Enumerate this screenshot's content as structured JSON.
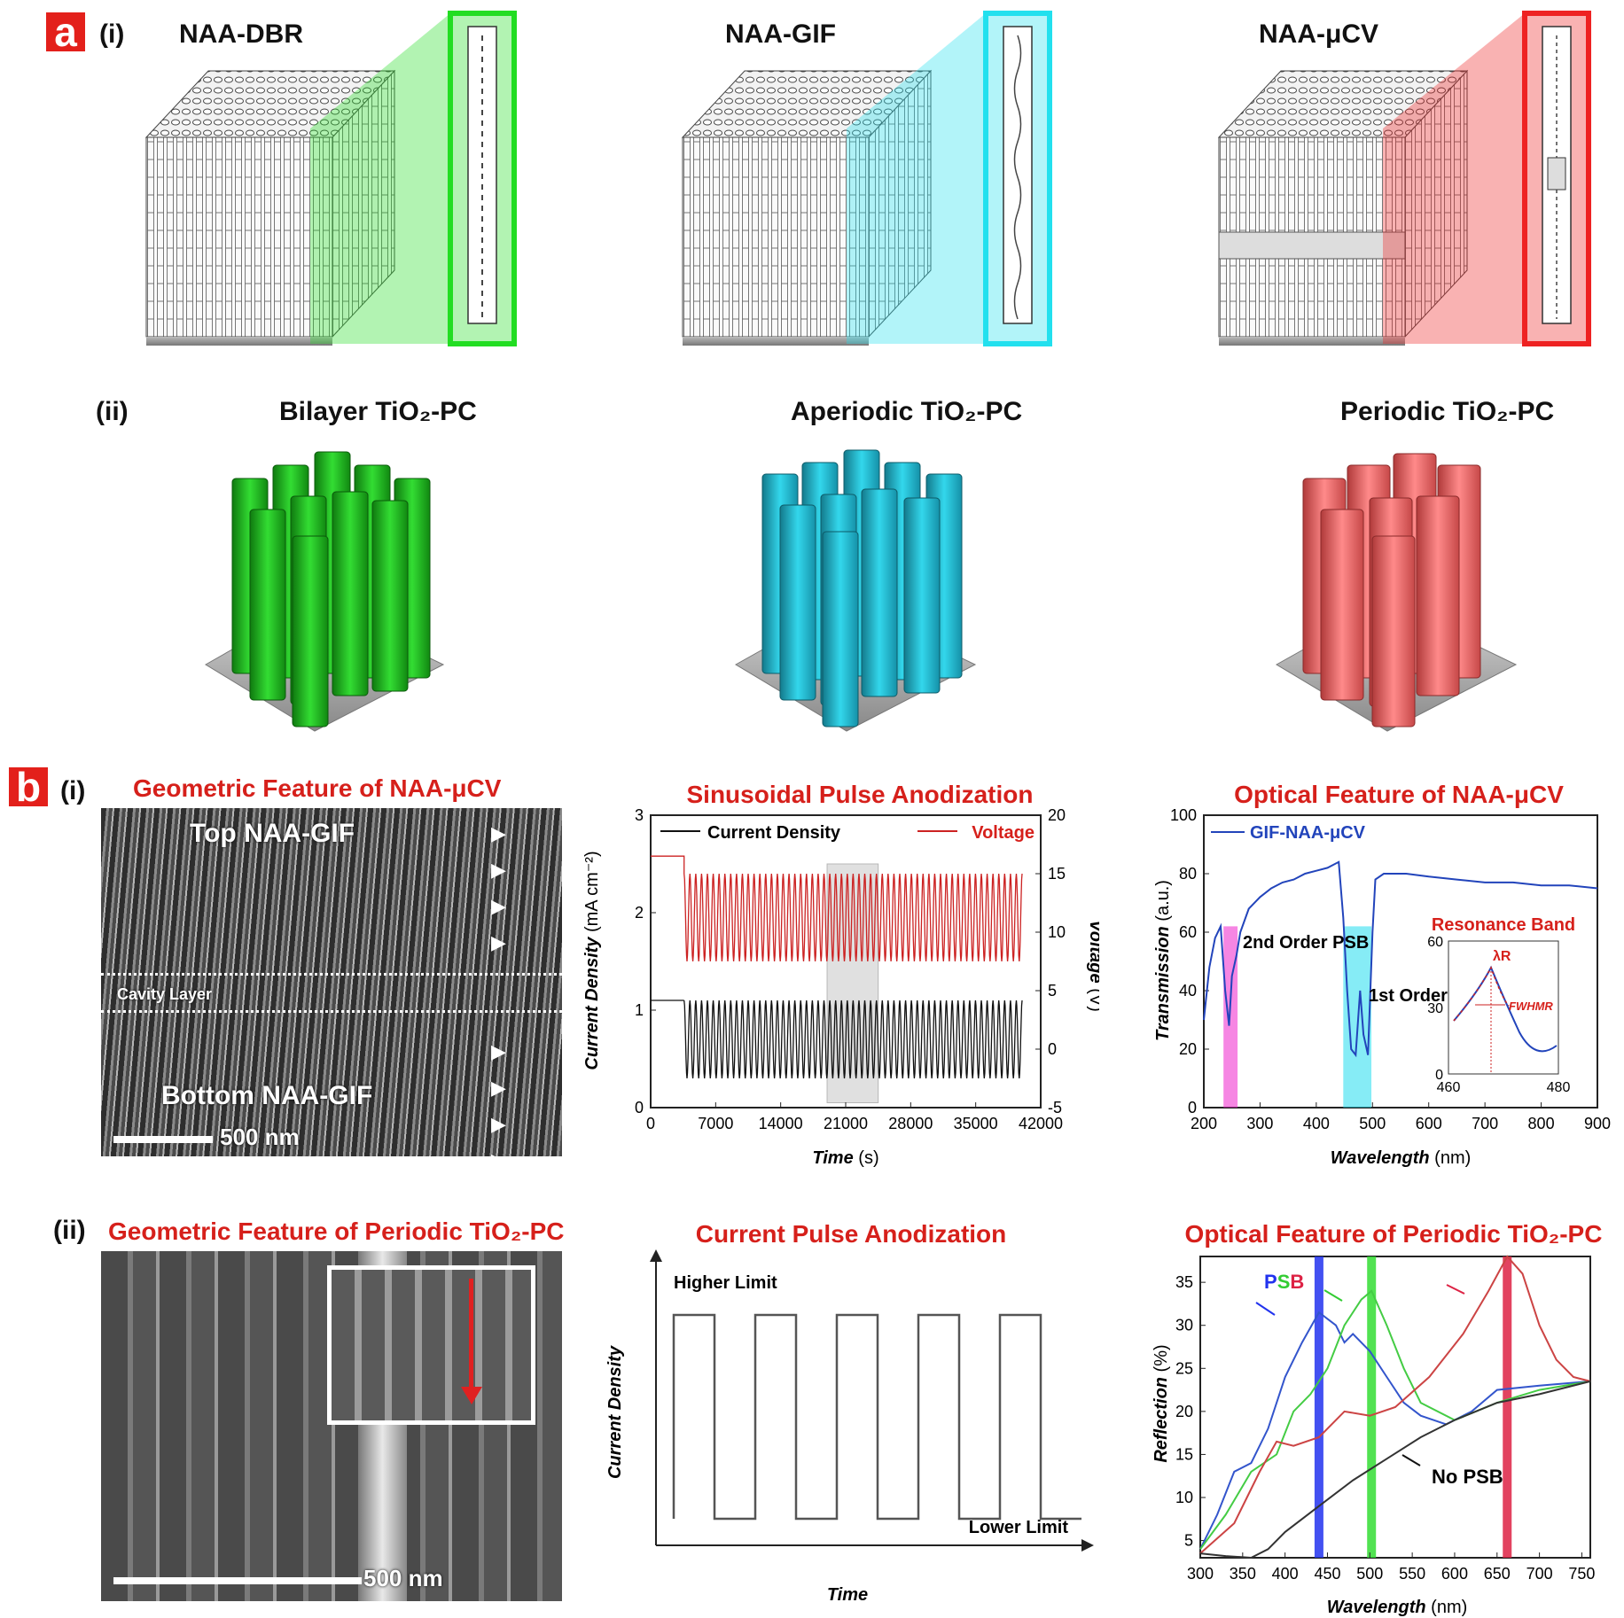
{
  "panel_a": {
    "tag": "a",
    "row_i": {
      "label": "(i)",
      "titles": [
        "NAA-DBR",
        "NAA-GIF",
        "NAA-μCV"
      ]
    },
    "row_ii": {
      "label": "(ii)",
      "titles": [
        "Bilayer TiO₂-PC",
        "Aperiodic TiO₂-PC",
        "Periodic TiO₂-PC"
      ]
    },
    "colors": {
      "dbr": "#22dd22",
      "gif": "#22e0ee",
      "ucv": "#ee2222",
      "green_pc": "#22bb22",
      "cyan_pc": "#22bcd6",
      "red_pc": "#e85c5c"
    }
  },
  "panel_b": {
    "tag": "b",
    "row_i_label": "(i)",
    "row_ii_label": "(ii)",
    "sem1": {
      "title": "Geometric Feature of NAA-μCV",
      "top_label": "Top NAA-GIF",
      "cavity_label": "Cavity Layer",
      "bottom_label": "Bottom NAA-GIF",
      "scale": "500 nm"
    },
    "sem2": {
      "title": "Geometric Feature of Periodic TiO₂-PC",
      "scale": "500 nm"
    },
    "pulse": {
      "title": "Current Pulse Anodization",
      "higher": "Higher Limit",
      "lower": "Lower Limit",
      "ylabel": "Current Density",
      "xlabel": "Time"
    }
  },
  "chart_data": [
    {
      "type": "line",
      "title": "Sinusoidal Pulse Anodization",
      "xlabel": "Time",
      "xunit": "(s)",
      "ylabel": "Current Density",
      "yunit": "(mA cm⁻²)",
      "y2label": "Voltage",
      "y2unit": "(V)",
      "xlim": [
        0,
        42000
      ],
      "ylim": [
        0,
        3
      ],
      "y2lim": [
        -5,
        20
      ],
      "xticks": [
        "0",
        "7000",
        "14000",
        "21000",
        "28000",
        "35000",
        "42000"
      ],
      "yticks": [
        "0",
        "1",
        "2",
        "3"
      ],
      "y2ticks": [
        "-5",
        "0",
        "5",
        "10",
        "15",
        "20"
      ],
      "series": [
        {
          "name": "Current Density",
          "color": "#111111",
          "baseline": 1.1,
          "min": 0.3,
          "max": 1.1,
          "start": 3600,
          "end": 40000,
          "cycles": 58
        },
        {
          "name": "Voltage",
          "color": "#cc2222",
          "baseline": 16.5,
          "min": 7.5,
          "max": 15,
          "start": 3600,
          "end": 40000,
          "cycles": 58
        }
      ],
      "highlight": [
        19000,
        24500
      ]
    },
    {
      "type": "line",
      "title": "Optical Feature of NAA-μCV",
      "xlabel": "Wavelength",
      "xunit": "(nm)",
      "ylabel": "Transmission",
      "yunit": "(a.u.)",
      "xlim": [
        200,
        900
      ],
      "ylim": [
        0,
        100
      ],
      "xticks": [
        "200",
        "300",
        "400",
        "500",
        "600",
        "700",
        "800",
        "900"
      ],
      "yticks": [
        "0",
        "20",
        "40",
        "60",
        "80",
        "100"
      ],
      "legend": "GIF-NAA-μCV",
      "series_color": "#2244bb",
      "points": [
        [
          200,
          30
        ],
        [
          210,
          48
        ],
        [
          220,
          58
        ],
        [
          230,
          62
        ],
        [
          238,
          40
        ],
        [
          245,
          28
        ],
        [
          250,
          45
        ],
        [
          258,
          52
        ],
        [
          265,
          60
        ],
        [
          280,
          68
        ],
        [
          300,
          72
        ],
        [
          320,
          75
        ],
        [
          340,
          77
        ],
        [
          360,
          78
        ],
        [
          380,
          80
        ],
        [
          400,
          81
        ],
        [
          420,
          82
        ],
        [
          440,
          84
        ],
        [
          448,
          65
        ],
        [
          455,
          40
        ],
        [
          462,
          20
        ],
        [
          470,
          18
        ],
        [
          478,
          40
        ],
        [
          484,
          25
        ],
        [
          492,
          18
        ],
        [
          500,
          60
        ],
        [
          505,
          78
        ],
        [
          520,
          80
        ],
        [
          560,
          80
        ],
        [
          600,
          79
        ],
        [
          650,
          78
        ],
        [
          700,
          77
        ],
        [
          750,
          77
        ],
        [
          800,
          76
        ],
        [
          850,
          76
        ],
        [
          900,
          75
        ]
      ],
      "bands": [
        {
          "from": 235,
          "to": 260,
          "label": "2nd Order PSB",
          "color": "#ee22cc"
        },
        {
          "from": 448,
          "to": 498,
          "label": "1st Order PSB",
          "color": "#22ddee"
        }
      ],
      "inset": {
        "title": "Resonance Band",
        "xlim": [
          460,
          480
        ],
        "ylim": [
          0,
          60
        ],
        "xticks": [
          "460",
          "480"
        ],
        "yticks": [
          "0",
          "30",
          "60"
        ],
        "peak_label": "λR",
        "width_label": "FWHMR"
      }
    },
    {
      "type": "line",
      "title": "Optical Feature of Periodic TiO₂-PC",
      "xlabel": "Wavelength",
      "xunit": "(nm)",
      "ylabel": "Reflection",
      "yunit": "(%)",
      "xlim": [
        300,
        760
      ],
      "ylim": [
        3,
        38
      ],
      "xticks": [
        "300",
        "350",
        "400",
        "450",
        "500",
        "550",
        "600",
        "650",
        "700",
        "750"
      ],
      "yticks": [
        "5",
        "10",
        "15",
        "20",
        "25",
        "30",
        "35"
      ],
      "psb_label": "PSB",
      "nopsb_label": "No PSB",
      "bands": [
        {
          "at": 440,
          "color": "#2233ee"
        },
        {
          "at": 502,
          "color": "#33dd33"
        },
        {
          "at": 662,
          "color": "#dd2244"
        }
      ],
      "series": [
        {
          "name": "Blue",
          "color": "#3355cc",
          "points": [
            [
              300,
              4
            ],
            [
              320,
              8
            ],
            [
              340,
              13
            ],
            [
              360,
              14
            ],
            [
              380,
              18
            ],
            [
              400,
              24
            ],
            [
              420,
              28
            ],
            [
              440,
              31.5
            ],
            [
              460,
              30
            ],
            [
              470,
              28
            ],
            [
              480,
              29
            ],
            [
              500,
              27
            ],
            [
              520,
              24
            ],
            [
              540,
              21
            ],
            [
              560,
              19.5
            ],
            [
              590,
              18.5
            ],
            [
              620,
              20
            ],
            [
              650,
              22.5
            ],
            [
              700,
              23
            ],
            [
              760,
              23.5
            ]
          ]
        },
        {
          "name": "Green",
          "color": "#44cc44",
          "points": [
            [
              300,
              4
            ],
            [
              330,
              8
            ],
            [
              360,
              13
            ],
            [
              390,
              15
            ],
            [
              410,
              20
            ],
            [
              430,
              22
            ],
            [
              450,
              25
            ],
            [
              470,
              30
            ],
            [
              490,
              33
            ],
            [
              502,
              34
            ],
            [
              520,
              30
            ],
            [
              540,
              25
            ],
            [
              560,
              21
            ],
            [
              600,
              19
            ],
            [
              650,
              21
            ],
            [
              700,
              22.5
            ],
            [
              760,
              23.5
            ]
          ]
        },
        {
          "name": "Red",
          "color": "#cc4444",
          "points": [
            [
              300,
              3.5
            ],
            [
              340,
              7
            ],
            [
              370,
              13
            ],
            [
              390,
              16.5
            ],
            [
              410,
              16
            ],
            [
              440,
              17
            ],
            [
              470,
              20
            ],
            [
              500,
              19.5
            ],
            [
              530,
              20.5
            ],
            [
              570,
              24
            ],
            [
              610,
              29
            ],
            [
              640,
              34
            ],
            [
              662,
              38
            ],
            [
              680,
              36
            ],
            [
              700,
              30
            ],
            [
              720,
              26
            ],
            [
              740,
              24
            ],
            [
              760,
              23.5
            ]
          ]
        },
        {
          "name": "No PSB",
          "color": "#333333",
          "points": [
            [
              300,
              3.5
            ],
            [
              330,
              3.2
            ],
            [
              360,
              3.0
            ],
            [
              380,
              4
            ],
            [
              400,
              6
            ],
            [
              440,
              9
            ],
            [
              480,
              12
            ],
            [
              520,
              14.5
            ],
            [
              560,
              17
            ],
            [
              600,
              19
            ],
            [
              650,
              21
            ],
            [
              700,
              22
            ],
            [
              760,
              23.5
            ]
          ]
        }
      ]
    }
  ]
}
